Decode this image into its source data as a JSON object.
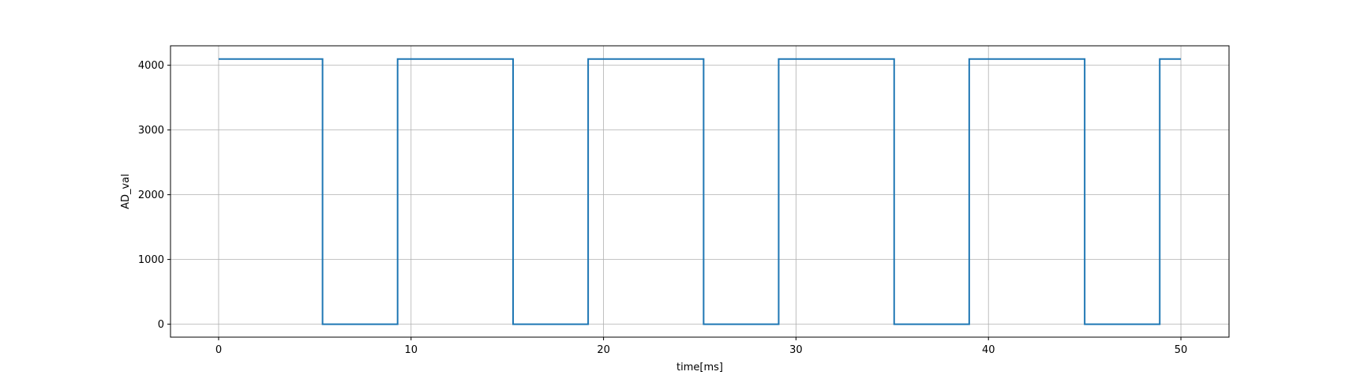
{
  "chart_data": {
    "type": "line",
    "title": "",
    "xlabel": "time[ms]",
    "ylabel": "AD_val",
    "xlim": [
      -2.5,
      52.5
    ],
    "ylim": [
      -200,
      4300
    ],
    "x_ticks": [
      0,
      10,
      20,
      30,
      40,
      50
    ],
    "y_ticks": [
      0,
      1000,
      2000,
      3000,
      4000
    ],
    "grid": true,
    "legend": "none",
    "colors": {
      "series": "#1f77b4",
      "grid": "#b0b0b0",
      "axes": "#000000"
    },
    "series": [
      {
        "x": [
          0,
          5.4,
          5.4,
          9.3,
          9.3,
          15.3,
          15.3,
          19.2,
          19.2,
          25.2,
          25.2,
          29.1,
          29.1,
          35.1,
          35.1,
          39.0,
          39.0,
          45.0,
          45.0,
          48.9,
          48.9,
          50.0
        ],
        "y": [
          4095,
          4095,
          0,
          0,
          4095,
          4095,
          0,
          0,
          4095,
          4095,
          0,
          0,
          4095,
          4095,
          0,
          0,
          4095,
          4095,
          0,
          0,
          4095,
          4095
        ]
      }
    ]
  }
}
